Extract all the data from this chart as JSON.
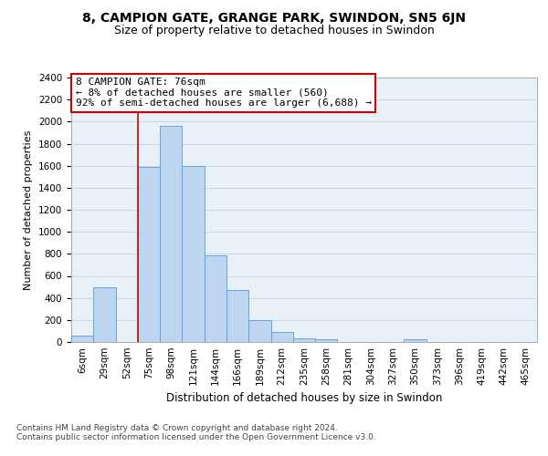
{
  "title1": "8, CAMPION GATE, GRANGE PARK, SWINDON, SN5 6JN",
  "title2": "Size of property relative to detached houses in Swindon",
  "xlabel": "Distribution of detached houses by size in Swindon",
  "ylabel": "Number of detached properties",
  "footnote1": "Contains HM Land Registry data © Crown copyright and database right 2024.",
  "footnote2": "Contains public sector information licensed under the Open Government Licence v3.0.",
  "bar_labels": [
    "6sqm",
    "29sqm",
    "52sqm",
    "75sqm",
    "98sqm",
    "121sqm",
    "144sqm",
    "166sqm",
    "189sqm",
    "212sqm",
    "235sqm",
    "258sqm",
    "281sqm",
    "304sqm",
    "327sqm",
    "350sqm",
    "373sqm",
    "396sqm",
    "419sqm",
    "442sqm",
    "465sqm"
  ],
  "bar_values": [
    60,
    500,
    0,
    1590,
    1960,
    1600,
    790,
    470,
    195,
    95,
    35,
    28,
    0,
    0,
    0,
    22,
    0,
    0,
    0,
    0,
    0
  ],
  "bar_color": "#bdd5ee",
  "bar_edge_color": "#5b9bd5",
  "grid_color": "#c8d8e8",
  "background_color": "#e8f0f8",
  "annotation_line1": "8 CAMPION GATE: 76sqm",
  "annotation_line2": "← 8% of detached houses are smaller (560)",
  "annotation_line3": "92% of semi-detached houses are larger (6,688) →",
  "annotation_box_color": "#ffffff",
  "annotation_box_edge_color": "#cc0000",
  "vline_idx": 3,
  "vline_color": "#cc0000",
  "ylim": [
    0,
    2400
  ],
  "yticks": [
    0,
    200,
    400,
    600,
    800,
    1000,
    1200,
    1400,
    1600,
    1800,
    2000,
    2200,
    2400
  ],
  "title1_fontsize": 10,
  "title2_fontsize": 9,
  "xlabel_fontsize": 8.5,
  "ylabel_fontsize": 8,
  "tick_fontsize": 7.5,
  "annotation_fontsize": 8,
  "footnote_fontsize": 6.5
}
